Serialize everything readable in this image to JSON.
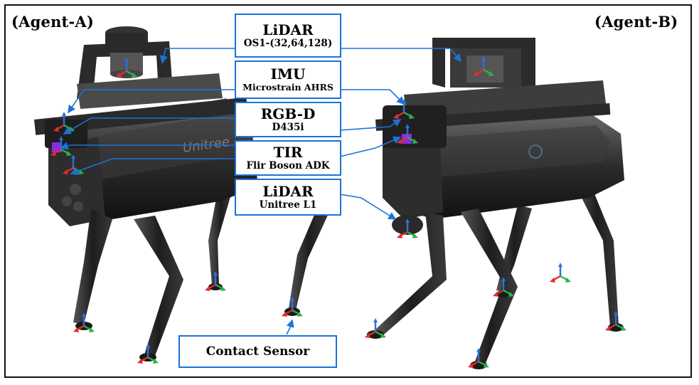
{
  "agents": {
    "left": "(Agent-A)",
    "right": "(Agent-B)"
  },
  "callouts": {
    "lidar_ouster": {
      "title": "LiDAR",
      "subtitle": "OS1-(32,64,128)"
    },
    "imu": {
      "title": "IMU",
      "subtitle": "Microstrain AHRS"
    },
    "rgbd": {
      "title": "RGB-D",
      "subtitle": "D435i"
    },
    "tir": {
      "title": "TIR",
      "subtitle": "Flir Boson ADK"
    },
    "lidar_unitree": {
      "title": "LiDAR",
      "subtitle": "Unitree L1"
    },
    "contact": {
      "title": "Contact Sensor"
    }
  },
  "robot_body_logo": "Unitree",
  "colors": {
    "callout_border": "#1b73d6",
    "leader_line": "#1b73d6",
    "robot_body": "#2a2a2a",
    "axis_x": "#e32b2b",
    "axis_y": "#2bb34a",
    "axis_z": "#2a6fe0",
    "sensor_purple": "#8a2be2"
  }
}
